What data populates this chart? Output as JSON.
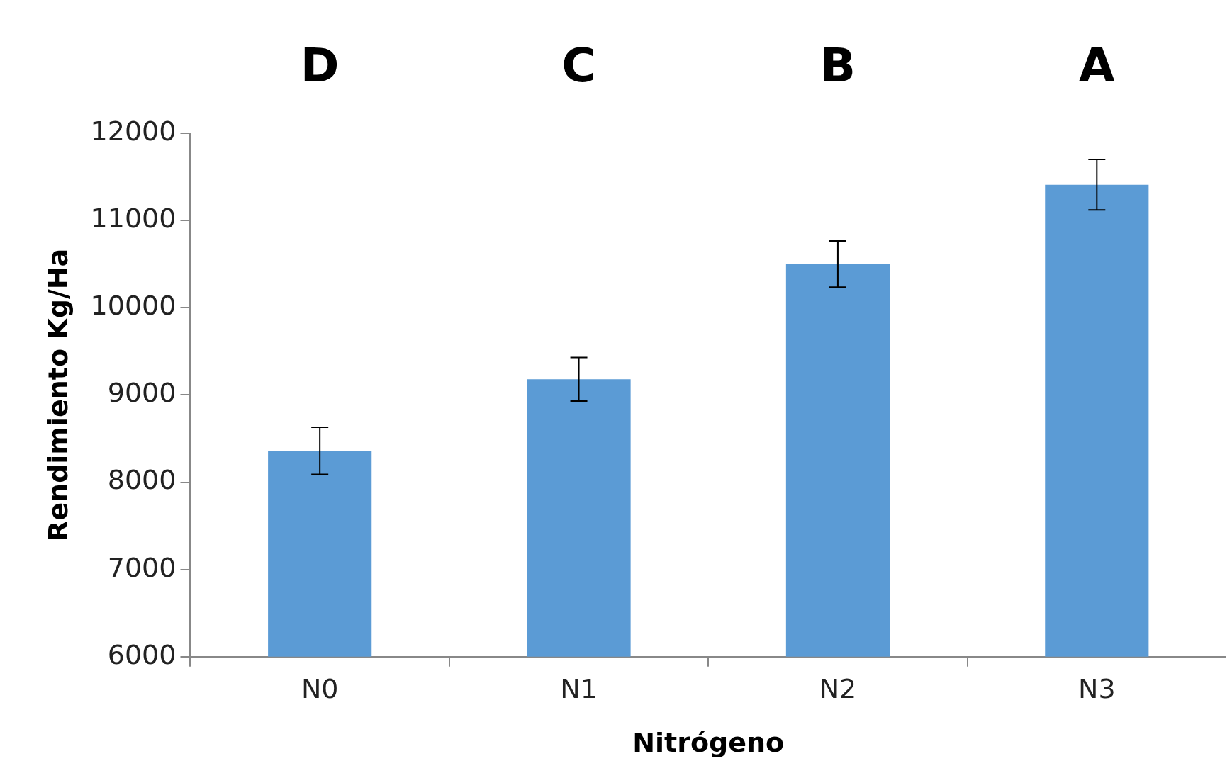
{
  "chart_data": {
    "type": "bar",
    "xlabel": "Nitrógeno",
    "ylabel": "Rendimiento Kg/Ha",
    "categories": [
      "N0",
      "N1",
      "N2",
      "N3"
    ],
    "values": [
      8360,
      9180,
      10500,
      11410
    ],
    "errors": [
      270,
      250,
      265,
      290
    ],
    "color": "#5b9bd5",
    "ylim": [
      6000,
      12000
    ],
    "yticks": [
      6000,
      7000,
      8000,
      9000,
      10000,
      11000,
      12000
    ],
    "grid": false,
    "legend": false,
    "annotations": [
      "D",
      "C",
      "B",
      "A"
    ]
  }
}
